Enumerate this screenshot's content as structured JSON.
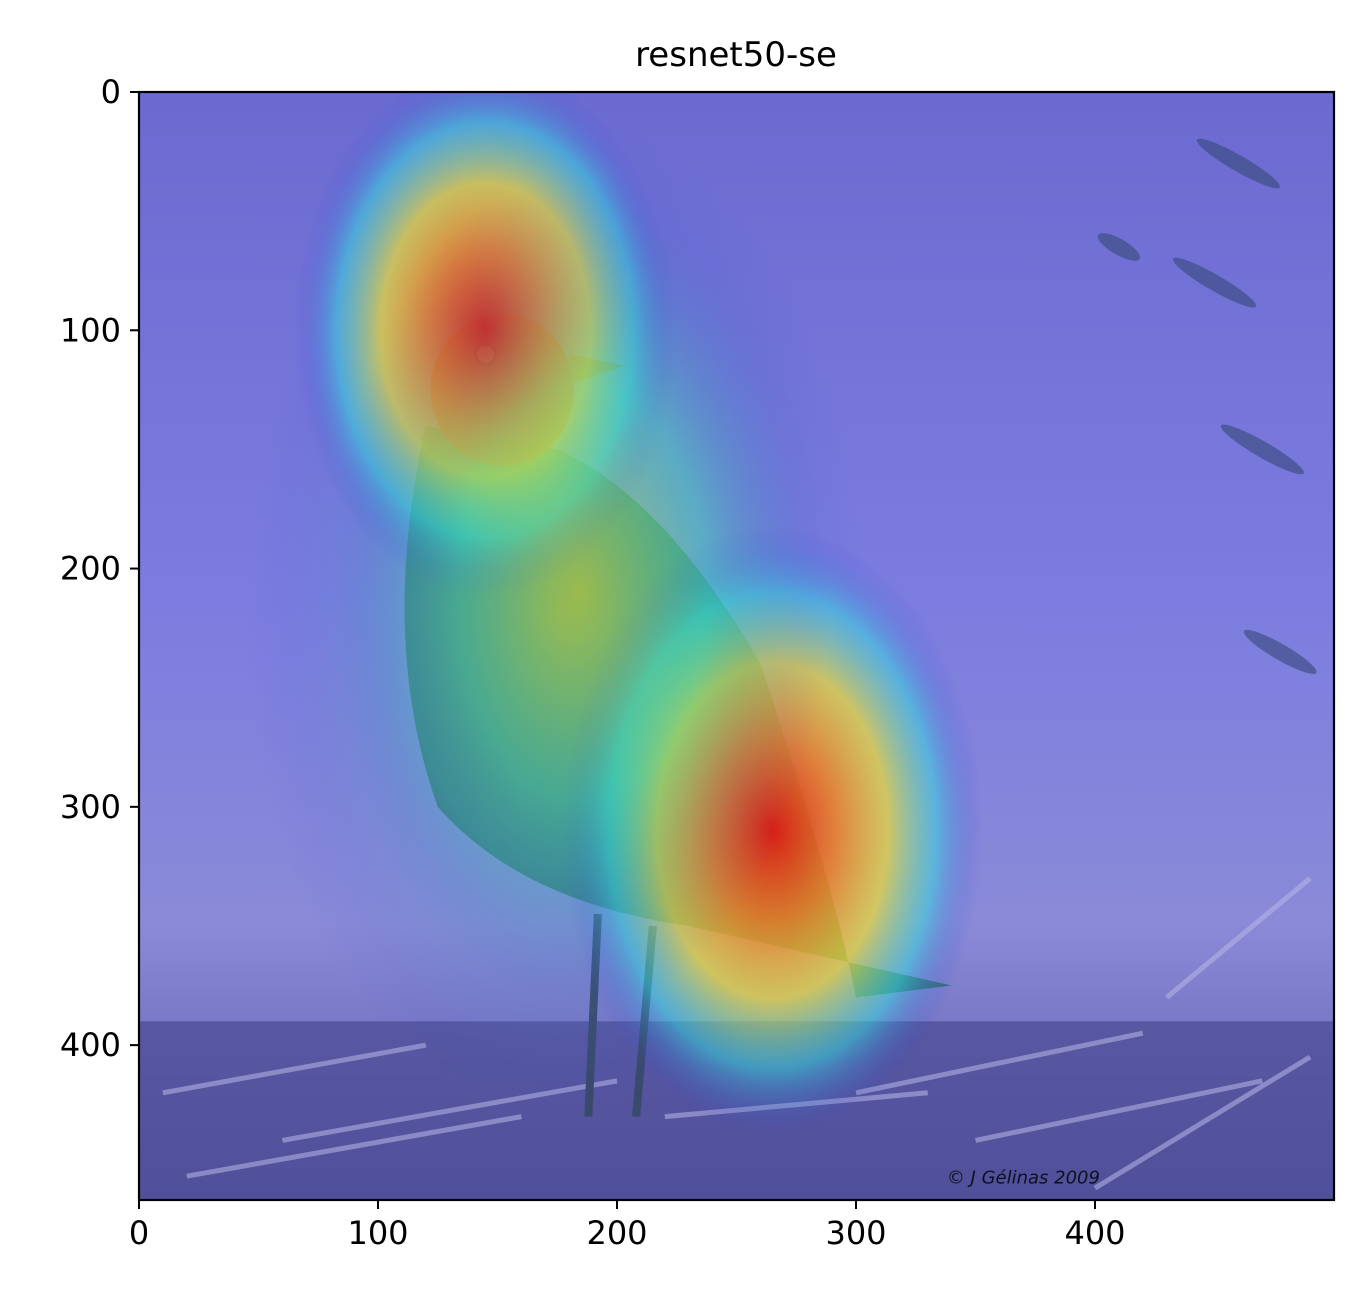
{
  "chart_data": {
    "type": "heatmap",
    "title": "resnet50-se",
    "xlabel": "",
    "ylabel": "",
    "image_width": 500,
    "image_height": 465,
    "xlim": [
      0,
      500
    ],
    "ylim": [
      465,
      0
    ],
    "xticks": [
      0,
      100,
      200,
      300,
      400
    ],
    "yticks": [
      0,
      100,
      200,
      300,
      400
    ],
    "grid": false,
    "colormap": "jet",
    "overlay_description": "Grad-CAM style activation heatmap overlaid on a photo of a perched bird",
    "hotspots": [
      {
        "x": 145,
        "y": 100,
        "intensity": 1.0,
        "rx": 50,
        "ry": 70
      },
      {
        "x": 265,
        "y": 310,
        "intensity": 1.0,
        "rx": 55,
        "ry": 80
      },
      {
        "x": 185,
        "y": 210,
        "intensity": 0.7,
        "rx": 65,
        "ry": 110
      }
    ],
    "watermark": "© J Gélinas 2009",
    "colors": {
      "cold": "#3b3bd0",
      "cool": "#00d0ff",
      "warm": "#f0e020",
      "hot": "#e02010"
    }
  }
}
